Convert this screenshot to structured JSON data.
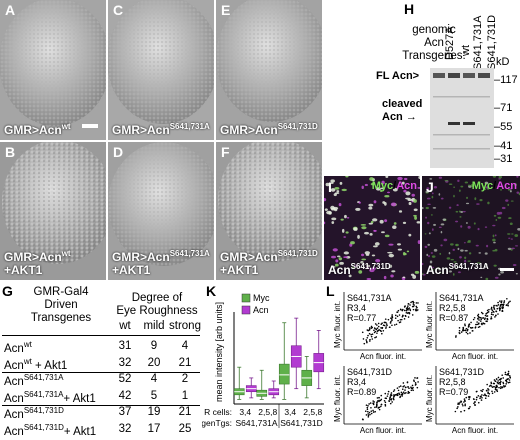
{
  "panels": {
    "A": {
      "letter": "A",
      "genotype": "GMR>Acn",
      "sup": "wt",
      "line2": ""
    },
    "B": {
      "letter": "B",
      "genotype": "GMR>Acn",
      "sup": "wt",
      "line2": "+AKT1"
    },
    "C": {
      "letter": "C",
      "genotype": "GMR>Acn",
      "sup": "S641,731A",
      "line2": ""
    },
    "D": {
      "letter": "D",
      "genotype": "GMR>Acn",
      "sup": "S641,731A",
      "line2": "+AKT1"
    },
    "E": {
      "letter": "E",
      "genotype": "GMR>Acn",
      "sup": "S641,731D",
      "line2": ""
    },
    "F": {
      "letter": "F",
      "genotype": "GMR>Acn",
      "sup": "S641,731D",
      "line2": "+AKT1"
    }
  },
  "western": {
    "letter": "H",
    "title_lines": [
      "genomic",
      "Acn",
      "Transgenes:"
    ],
    "lanes": [
      "D527A",
      "wt",
      "S641,731A",
      "S641,731D"
    ],
    "kd_label": "kD",
    "markers": [
      "117",
      "71",
      "55",
      "41",
      "31"
    ],
    "fl_label": "FL Acn>",
    "cleaved_label_1": "cleaved",
    "cleaved_label_2": "Acn",
    "cleaved_arrow": "→"
  },
  "micro": {
    "I": {
      "letter": "I",
      "myc": "Myc",
      "acn": "Acn",
      "caption": "Acn",
      "sup": "S641,731D"
    },
    "J": {
      "letter": "J",
      "myc": "Myc",
      "acn": "Acn",
      "caption": "Acn",
      "sup": "S641,731A"
    }
  },
  "table": {
    "letter": "G",
    "header_left": [
      "GMR-Gal4",
      "Driven",
      "Transgenes"
    ],
    "header_right_1": "Degree of",
    "header_right_2": "Eye Roughness",
    "cols": [
      "wt",
      "mild",
      "strong"
    ],
    "rows": [
      {
        "base": "Acn",
        "sup": "wt",
        "suffix": "",
        "values": [
          "31",
          "9",
          "4"
        ]
      },
      {
        "base": "Acn",
        "sup": "wt",
        "suffix": " + Akt1",
        "values": [
          "32",
          "20",
          "21"
        ]
      },
      {
        "base": "Acn",
        "sup": "S641,731A",
        "suffix": "",
        "values": [
          "52",
          "4",
          "2"
        ]
      },
      {
        "base": "Acn",
        "sup": "S641,731A",
        "suffix": "+ Akt1",
        "values": [
          "42",
          "5",
          "1"
        ]
      },
      {
        "base": "Acn",
        "sup": "S641,731D",
        "suffix": "",
        "values": [
          "37",
          "19",
          "21"
        ]
      },
      {
        "base": "Acn",
        "sup": "S641,731D",
        "suffix": "+ Akt1",
        "values": [
          "32",
          "17",
          "25"
        ]
      }
    ]
  },
  "chart_data": [
    {
      "type": "box",
      "letter": "K",
      "ylabel": "mean intensity [arb units]",
      "ylim": [
        0,
        0.6
      ],
      "legend": [
        {
          "name": "Myc",
          "color": "#5fb04a"
        },
        {
          "name": "Acn",
          "color": "#b23bd1"
        }
      ],
      "row1_label": "R cells:",
      "row2_label": "genTgs:",
      "groups": [
        {
          "rcells": "3,4",
          "gentg": "S641,731A",
          "myc": {
            "min": 0.03,
            "q1": 0.06,
            "med": 0.08,
            "q3": 0.1,
            "max": 0.24
          },
          "acn": {
            "min": 0.04,
            "q1": 0.08,
            "med": 0.1,
            "q3": 0.12,
            "max": 0.17
          }
        },
        {
          "rcells": "2,5,8",
          "gentg": "S641,731A",
          "myc": {
            "min": 0.03,
            "q1": 0.05,
            "med": 0.07,
            "q3": 0.09,
            "max": 0.22
          },
          "acn": {
            "min": 0.04,
            "q1": 0.06,
            "med": 0.08,
            "q3": 0.1,
            "max": 0.15
          }
        },
        {
          "rcells": "3,4",
          "gentg": "S641,731D",
          "myc": {
            "min": 0.03,
            "q1": 0.13,
            "med": 0.19,
            "q3": 0.26,
            "max": 0.53
          },
          "acn": {
            "min": 0.1,
            "q1": 0.24,
            "med": 0.31,
            "q3": 0.38,
            "max": 0.56
          }
        },
        {
          "rcells": "2,5,8",
          "gentg": "S641,731D",
          "myc": {
            "min": 0.04,
            "q1": 0.12,
            "med": 0.17,
            "q3": 0.22,
            "max": 0.31
          },
          "acn": {
            "min": 0.1,
            "q1": 0.21,
            "med": 0.27,
            "q3": 0.33,
            "max": 0.48
          }
        }
      ]
    },
    {
      "type": "scatter",
      "letter": "L",
      "xlabel": "Acn fluor. int.",
      "ylabel": "Myc fluor. int.",
      "subplots": [
        {
          "line1": "S641,731A",
          "line2": "R3,4",
          "line3": "R=0.77",
          "xticks": [
            "0",
            "0.5",
            "1.0",
            "1.5",
            "2.0"
          ],
          "yticks": [
            "0",
            "1.0",
            "2.0"
          ]
        },
        {
          "line1": "S641,731A",
          "line2": "R2,5,8",
          "line3": "R=0.87",
          "xticks": [
            "0",
            "0.5",
            "1.0",
            "1.5",
            "2.0"
          ],
          "yticks": [
            "0",
            "1.0",
            "2.0"
          ]
        },
        {
          "line1": "S641,731D",
          "line2": "R3,4",
          "line3": "R=0.89",
          "xticks": [
            "0",
            "0.5",
            "1.0",
            "1.5",
            "2.0"
          ],
          "yticks": [
            "0",
            "1.0",
            "2.0"
          ]
        },
        {
          "line1": "S641,731D",
          "line2": "R2,5,8",
          "line3": "R=0.79",
          "xticks": [
            "0",
            "0.5",
            "1.0",
            "1.5",
            "2.0"
          ],
          "yticks": [
            "0",
            "1.0",
            "2.0"
          ]
        }
      ]
    }
  ]
}
